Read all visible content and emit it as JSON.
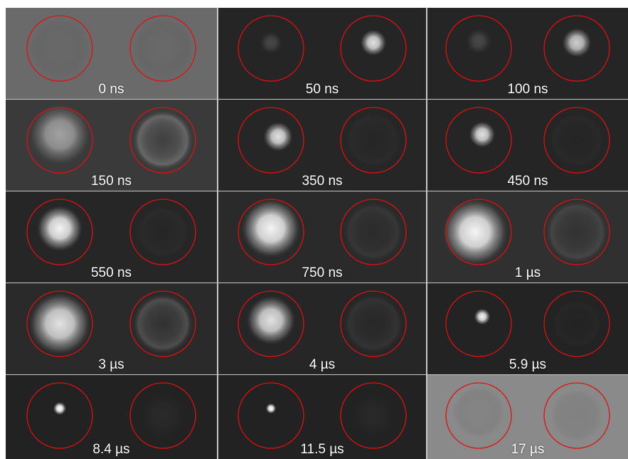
{
  "colors": {
    "ring_stroke": "#e01010",
    "label_text": "#ffffff",
    "gap": "#c8c8c8"
  },
  "panels": [
    {
      "label": "0 ns",
      "background": "#6a6a6a",
      "left": {
        "glow": 0.15,
        "size": 0.9
      },
      "right": {
        "glow": 0.18,
        "size": 0.9
      }
    },
    {
      "label": "50 ns",
      "background": "#252525",
      "left": {
        "glow": 0.35,
        "size": 0.35
      },
      "right": {
        "glow": 0.9,
        "size": 0.4
      }
    },
    {
      "label": "100 ns",
      "background": "#252525",
      "left": {
        "glow": 0.35,
        "size": 0.4
      },
      "right": {
        "glow": 0.85,
        "size": 0.45
      }
    },
    {
      "label": "150 ns",
      "background": "#3a3a3a",
      "left": {
        "glow": 0.7,
        "size": 0.95
      },
      "right": {
        "glow": 0.55,
        "size": 0.95,
        "ring": true
      }
    },
    {
      "label": "350 ns",
      "background": "#262626",
      "left": {
        "glow": 0.9,
        "size": 0.45
      },
      "right": {
        "glow": 0.12,
        "size": 0.9,
        "ring": true
      }
    },
    {
      "label": "450 ns",
      "background": "#252525",
      "left": {
        "glow": 0.9,
        "size": 0.4
      },
      "right": {
        "glow": 0.08,
        "size": 0.9,
        "ring": true
      }
    },
    {
      "label": "550 ns",
      "background": "#262626",
      "left": {
        "glow": 0.95,
        "size": 0.7
      },
      "right": {
        "glow": 0.1,
        "size": 0.85,
        "ring": true
      }
    },
    {
      "label": "750 ns",
      "background": "#2a2a2a",
      "left": {
        "glow": 0.95,
        "size": 0.9
      },
      "right": {
        "glow": 0.25,
        "size": 0.95,
        "ring": true
      }
    },
    {
      "label": "1 µs",
      "background": "#303030",
      "left": {
        "glow": 0.95,
        "size": 1.0
      },
      "right": {
        "glow": 0.35,
        "size": 1.0,
        "ring": true
      }
    },
    {
      "label": "3 µs",
      "background": "#2a2a2a",
      "left": {
        "glow": 0.9,
        "size": 0.95
      },
      "right": {
        "glow": 0.45,
        "size": 0.95,
        "ring": true
      }
    },
    {
      "label": "4 µs",
      "background": "#262626",
      "left": {
        "glow": 0.9,
        "size": 0.75
      },
      "right": {
        "glow": 0.25,
        "size": 0.95,
        "ring": true
      }
    },
    {
      "label": "5.9 µs",
      "background": "#232323",
      "left": {
        "glow": 0.95,
        "size": 0.25
      },
      "right": {
        "glow": 0.06,
        "size": 0.8,
        "ring": true
      }
    },
    {
      "label": "8.4 µs",
      "background": "#222222",
      "left": {
        "glow": 1.0,
        "size": 0.2
      },
      "right": {
        "glow": 0.08,
        "size": 0.8
      }
    },
    {
      "label": "11.5 µs",
      "background": "#222222",
      "left": {
        "glow": 1.0,
        "size": 0.16
      },
      "right": {
        "glow": 0.05,
        "size": 0.8
      }
    },
    {
      "label": "17 µs",
      "background": "#8a8a8a",
      "left": {
        "glow": 0.2,
        "size": 0.8
      },
      "right": {
        "glow": 0.05,
        "size": 0.8
      }
    }
  ]
}
